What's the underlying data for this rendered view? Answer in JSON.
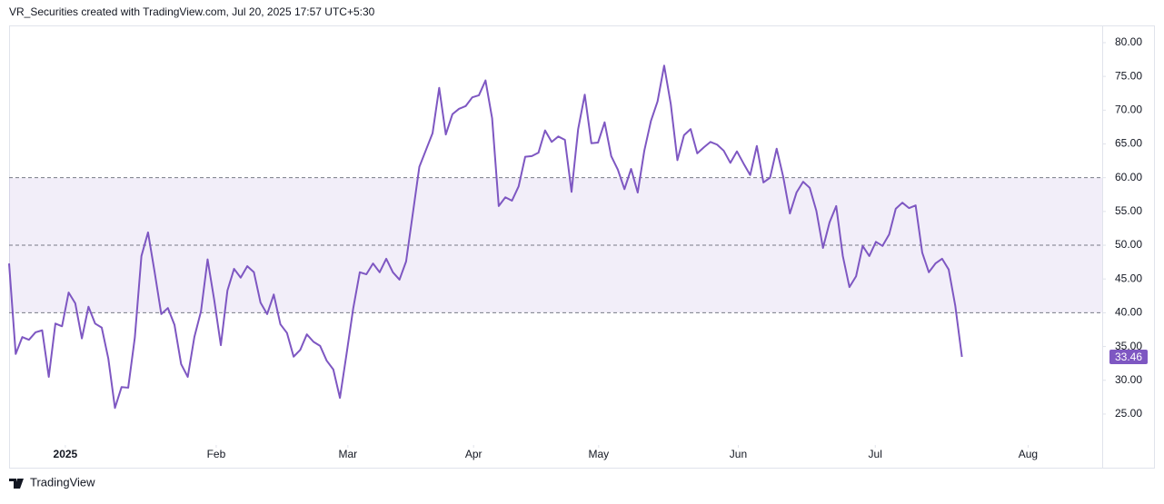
{
  "header": "VR_Securities created with TradingView.com, Jul 20, 2025 17:57 UTC+5:30",
  "footer": "TradingView",
  "chart_data": {
    "type": "line",
    "color": "#7e57c2",
    "values": [
      47.3,
      33.9,
      36.4,
      36.0,
      37.1,
      37.4,
      30.5,
      38.4,
      38.0,
      43.0,
      41.4,
      36.2,
      40.9,
      38.4,
      37.8,
      33.2,
      25.9,
      29.0,
      28.9,
      36.3,
      48.4,
      51.9,
      46.0,
      39.8,
      40.7,
      38.2,
      32.4,
      30.5,
      36.4,
      40.2,
      47.9,
      41.9,
      35.2,
      43.3,
      46.5,
      45.2,
      46.9,
      46.0,
      41.5,
      39.8,
      42.7,
      38.3,
      37.0,
      33.5,
      34.5,
      36.8,
      35.7,
      35.1,
      32.9,
      31.6,
      27.4,
      33.9,
      40.6,
      46.0,
      45.7,
      47.3,
      46.0,
      48.0,
      46.0,
      44.9,
      47.6,
      54.6,
      61.6,
      64.1,
      66.6,
      73.3,
      66.4,
      69.4,
      70.2,
      70.6,
      71.9,
      72.2,
      74.4,
      68.8,
      55.8,
      57.1,
      56.6,
      58.7,
      63.1,
      63.2,
      63.7,
      67.0,
      65.3,
      66.1,
      65.6,
      57.9,
      67.2,
      72.3,
      65.1,
      65.2,
      68.2,
      63.2,
      61.2,
      58.3,
      61.3,
      57.8,
      64.0,
      68.4,
      71.3,
      76.6,
      70.9,
      62.6,
      66.3,
      67.2,
      63.6,
      64.5,
      65.3,
      64.9,
      64.0,
      62.2,
      63.9,
      62.1,
      60.4,
      64.7,
      59.3,
      60.0,
      64.3,
      60.1,
      54.7,
      57.8,
      59.4,
      58.5,
      55.1,
      49.6,
      53.4,
      55.8,
      48.4,
      43.8,
      45.4,
      49.9,
      48.4,
      50.5,
      49.9,
      51.6,
      55.4,
      56.3,
      55.5,
      55.9,
      48.9,
      46.0,
      47.3,
      48.0,
      46.4,
      41.0,
      33.46
    ],
    "band": [
      40,
      60
    ],
    "midline": 50,
    "band_color": "#7e57c2",
    "xlim": [
      0,
      165.2
    ],
    "xticks": [
      {
        "value": 8.5,
        "label": "2025"
      },
      {
        "value": 31.3,
        "label": "Feb"
      },
      {
        "value": 51.2,
        "label": "Mar"
      },
      {
        "value": 70.2,
        "label": "Apr"
      },
      {
        "value": 89.1,
        "label": "May"
      },
      {
        "value": 110.2,
        "label": "Jun"
      },
      {
        "value": 130.9,
        "label": "Jul"
      },
      {
        "value": 154.0,
        "label": "Aug"
      }
    ],
    "ylim": [
      20.42,
      82.55
    ],
    "yticks": [
      {
        "value": 80,
        "label": "80.00"
      },
      {
        "value": 75,
        "label": "75.00"
      },
      {
        "value": 70,
        "label": "70.00"
      },
      {
        "value": 65,
        "label": "65.00"
      },
      {
        "value": 60,
        "label": "60.00"
      },
      {
        "value": 55,
        "label": "55.00"
      },
      {
        "value": 50,
        "label": "50.00"
      },
      {
        "value": 45,
        "label": "45.00"
      },
      {
        "value": 40,
        "label": "40.00"
      },
      {
        "value": 35,
        "label": "35.00"
      },
      {
        "value": 30,
        "label": "30.00"
      },
      {
        "value": 25,
        "label": "25.00"
      }
    ]
  }
}
